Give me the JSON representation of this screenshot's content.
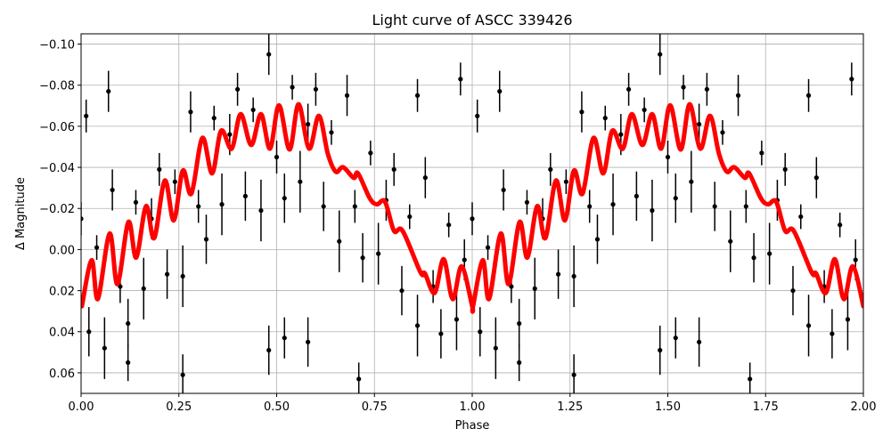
{
  "chart_data": {
    "type": "scatter",
    "title": "Light curve of ASCC 339426",
    "xlabel": "Phase",
    "ylabel": "Δ Magnitude",
    "xlim": [
      0,
      2
    ],
    "ylim": [
      0.07,
      -0.105
    ],
    "y_inverted": true,
    "grid": true,
    "xticks": [
      "0.00",
      "0.25",
      "0.50",
      "0.75",
      "1.00",
      "1.25",
      "1.50",
      "1.75",
      "2.00"
    ],
    "yticks": [
      "−0.10",
      "−0.08",
      "−0.06",
      "−0.04",
      "−0.02",
      "0.00",
      "0.02",
      "0.04",
      "0.06"
    ],
    "colors": {
      "points": "#000000",
      "model": "#ff0000",
      "grid": "#b0b0b0"
    },
    "points_repeat_period": 1,
    "points": [
      [
        0.0,
        -0.015,
        0.008
      ],
      [
        0.02,
        0.04,
        0.012
      ],
      [
        0.04,
        -0.001,
        0.006
      ],
      [
        0.06,
        0.048,
        0.015
      ],
      [
        0.08,
        -0.029,
        0.01
      ],
      [
        0.1,
        0.018,
        0.008
      ],
      [
        0.12,
        0.036,
        0.012
      ],
      [
        0.14,
        -0.023,
        0.006
      ],
      [
        0.16,
        0.019,
        0.015
      ],
      [
        0.18,
        -0.015,
        0.01
      ],
      [
        0.2,
        -0.039,
        0.008
      ],
      [
        0.22,
        0.012,
        0.012
      ],
      [
        0.24,
        -0.033,
        0.006
      ],
      [
        0.26,
        0.013,
        0.015
      ],
      [
        0.28,
        -0.067,
        0.01
      ],
      [
        0.3,
        -0.021,
        0.008
      ],
      [
        0.32,
        -0.005,
        0.012
      ],
      [
        0.34,
        -0.064,
        0.006
      ],
      [
        0.36,
        -0.022,
        0.015
      ],
      [
        0.38,
        -0.056,
        0.01
      ],
      [
        0.4,
        -0.078,
        0.008
      ],
      [
        0.42,
        -0.026,
        0.012
      ],
      [
        0.44,
        -0.068,
        0.006
      ],
      [
        0.46,
        -0.019,
        0.015
      ],
      [
        0.48,
        -0.095,
        0.01
      ],
      [
        0.5,
        -0.045,
        0.008
      ],
      [
        0.52,
        -0.025,
        0.012
      ],
      [
        0.54,
        -0.079,
        0.006
      ],
      [
        0.56,
        -0.033,
        0.015
      ],
      [
        0.58,
        -0.061,
        0.01
      ],
      [
        0.6,
        -0.078,
        0.008
      ],
      [
        0.62,
        -0.021,
        0.012
      ],
      [
        0.64,
        -0.057,
        0.006
      ],
      [
        0.66,
        -0.004,
        0.015
      ],
      [
        0.68,
        -0.075,
        0.01
      ],
      [
        0.7,
        -0.021,
        0.008
      ],
      [
        0.72,
        0.004,
        0.012
      ],
      [
        0.74,
        -0.047,
        0.006
      ],
      [
        0.76,
        0.002,
        0.015
      ],
      [
        0.78,
        -0.024,
        0.01
      ],
      [
        0.8,
        -0.039,
        0.008
      ],
      [
        0.82,
        0.02,
        0.012
      ],
      [
        0.84,
        -0.016,
        0.006
      ],
      [
        0.86,
        0.037,
        0.015
      ],
      [
        0.88,
        -0.035,
        0.01
      ],
      [
        0.9,
        0.018,
        0.008
      ],
      [
        0.92,
        0.041,
        0.012
      ],
      [
        0.94,
        -0.012,
        0.006
      ],
      [
        0.96,
        0.034,
        0.015
      ],
      [
        0.98,
        0.005,
        0.01
      ],
      [
        0.013,
        -0.065,
        0.008
      ],
      [
        0.07,
        -0.077,
        0.01
      ],
      [
        0.12,
        0.055,
        0.009
      ],
      [
        0.26,
        0.061,
        0.01
      ],
      [
        0.48,
        0.049,
        0.012
      ],
      [
        0.52,
        0.043,
        0.01
      ],
      [
        0.58,
        0.045,
        0.012
      ],
      [
        0.97,
        -0.083,
        0.008
      ],
      [
        0.71,
        0.063,
        0.008
      ],
      [
        0.86,
        -0.075,
        0.008
      ]
    ],
    "model": {
      "name": "",
      "repeat_period": 1,
      "points": [
        [
          0.002,
          0.0276
        ],
        [
          0.027,
          0.0052
        ],
        [
          0.043,
          0.024
        ],
        [
          0.073,
          -0.0078
        ],
        [
          0.093,
          0.0168
        ],
        [
          0.121,
          -0.0134
        ],
        [
          0.141,
          0.0039
        ],
        [
          0.166,
          -0.0211
        ],
        [
          0.187,
          -0.0056
        ],
        [
          0.214,
          -0.0336
        ],
        [
          0.237,
          -0.0142
        ],
        [
          0.26,
          -0.0384
        ],
        [
          0.282,
          -0.0272
        ],
        [
          0.31,
          -0.0543
        ],
        [
          0.335,
          -0.0371
        ],
        [
          0.358,
          -0.0578
        ],
        [
          0.385,
          -0.0491
        ],
        [
          0.408,
          -0.0659
        ],
        [
          0.435,
          -0.0509
        ],
        [
          0.46,
          -0.0659
        ],
        [
          0.483,
          -0.0491
        ],
        [
          0.506,
          -0.0702
        ],
        [
          0.533,
          -0.0487
        ],
        [
          0.556,
          -0.0707
        ],
        [
          0.583,
          -0.0491
        ],
        [
          0.608,
          -0.0651
        ],
        [
          0.631,
          -0.0465
        ],
        [
          0.651,
          -0.0379
        ],
        [
          0.67,
          -0.0401
        ],
        [
          0.697,
          -0.0349
        ],
        [
          0.708,
          -0.0371
        ],
        [
          0.738,
          -0.025
        ],
        [
          0.756,
          -0.022
        ],
        [
          0.777,
          -0.0233
        ],
        [
          0.8,
          -0.0091
        ],
        [
          0.822,
          -0.0091
        ],
        [
          0.868,
          0.0112
        ],
        [
          0.879,
          0.0116
        ],
        [
          0.904,
          0.0211
        ],
        [
          0.927,
          0.0047
        ],
        [
          0.95,
          0.0241
        ],
        [
          0.973,
          0.0082
        ],
        [
          1.0,
          0.0276
        ]
      ]
    }
  }
}
